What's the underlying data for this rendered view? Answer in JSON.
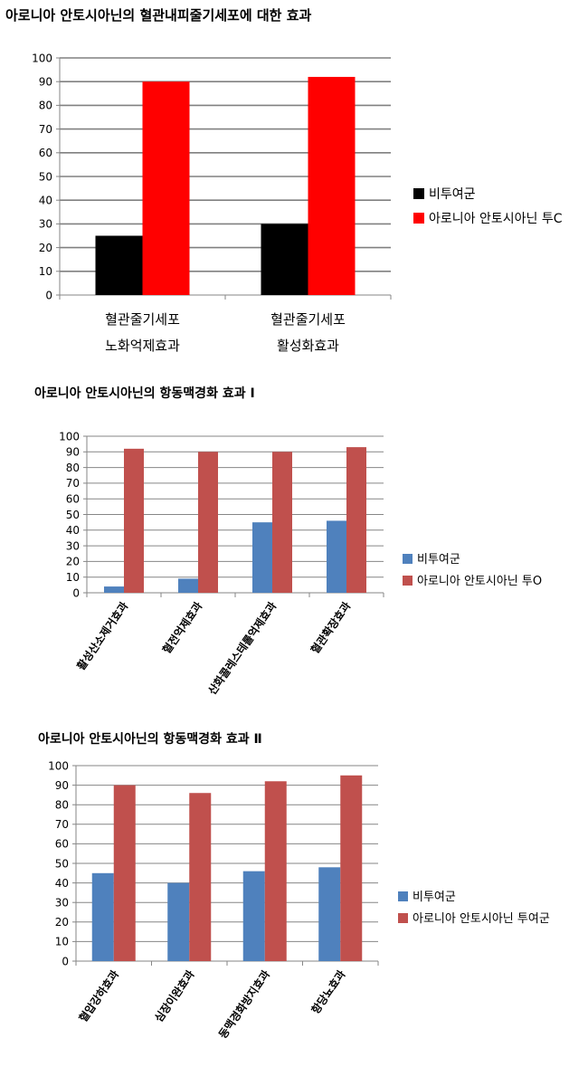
{
  "chart_data": [
    {
      "type": "bar",
      "title": "아로니아 안토시아닌의 혈관내피줄기세포에 대한 효과",
      "categories": [
        [
          "혈관줄기세포",
          "노화억제효과"
        ],
        [
          "혈관줄기세포",
          "활성화효과"
        ]
      ],
      "series": [
        {
          "name": "비투여군",
          "values": [
            25,
            30
          ]
        },
        {
          "name": "아로니아 안토시아닌 투C",
          "values": [
            90,
            92
          ]
        }
      ],
      "ylim": [
        0,
        100
      ],
      "yticks": [
        0,
        10,
        20,
        30,
        40,
        50,
        60,
        70,
        80,
        90,
        100
      ],
      "grid": true,
      "legend": "right",
      "colors": [
        "#000000",
        "#ff0000"
      ]
    },
    {
      "type": "bar",
      "title": "아로니아 안토시아닌의 항동맥경화 효과 Ⅰ",
      "categories": [
        "활성산소제거효과",
        "혈전억제효과",
        "산화콜레스테롤억제효과",
        "혈관확장효과"
      ],
      "series": [
        {
          "name": "비투여군",
          "values": [
            4,
            9,
            45,
            46
          ]
        },
        {
          "name": "아로니아 안토시아닌 투O",
          "values": [
            92,
            90,
            90,
            93
          ]
        }
      ],
      "ylim": [
        0,
        100
      ],
      "yticks": [
        0,
        10,
        20,
        30,
        40,
        50,
        60,
        70,
        80,
        90,
        100
      ],
      "grid": true,
      "legend": "right",
      "colors": [
        "#4f81bd",
        "#c0504d"
      ]
    },
    {
      "type": "bar",
      "title": "아로니아 안토시아닌의 항동맥경화 효과 Ⅱ",
      "categories": [
        "혈압강하효과",
        "심장이완효과",
        "동맥경화방지효과",
        "항당뇨효과"
      ],
      "series": [
        {
          "name": "비투여군",
          "values": [
            45,
            40,
            46,
            48
          ]
        },
        {
          "name": "아로니아 안토시아닌 투여군",
          "values": [
            90,
            86,
            92,
            95
          ]
        }
      ],
      "ylim": [
        0,
        100
      ],
      "yticks": [
        0,
        10,
        20,
        30,
        40,
        50,
        60,
        70,
        80,
        90,
        100
      ],
      "grid": true,
      "legend": "right",
      "colors": [
        "#4f81bd",
        "#c0504d"
      ]
    }
  ]
}
